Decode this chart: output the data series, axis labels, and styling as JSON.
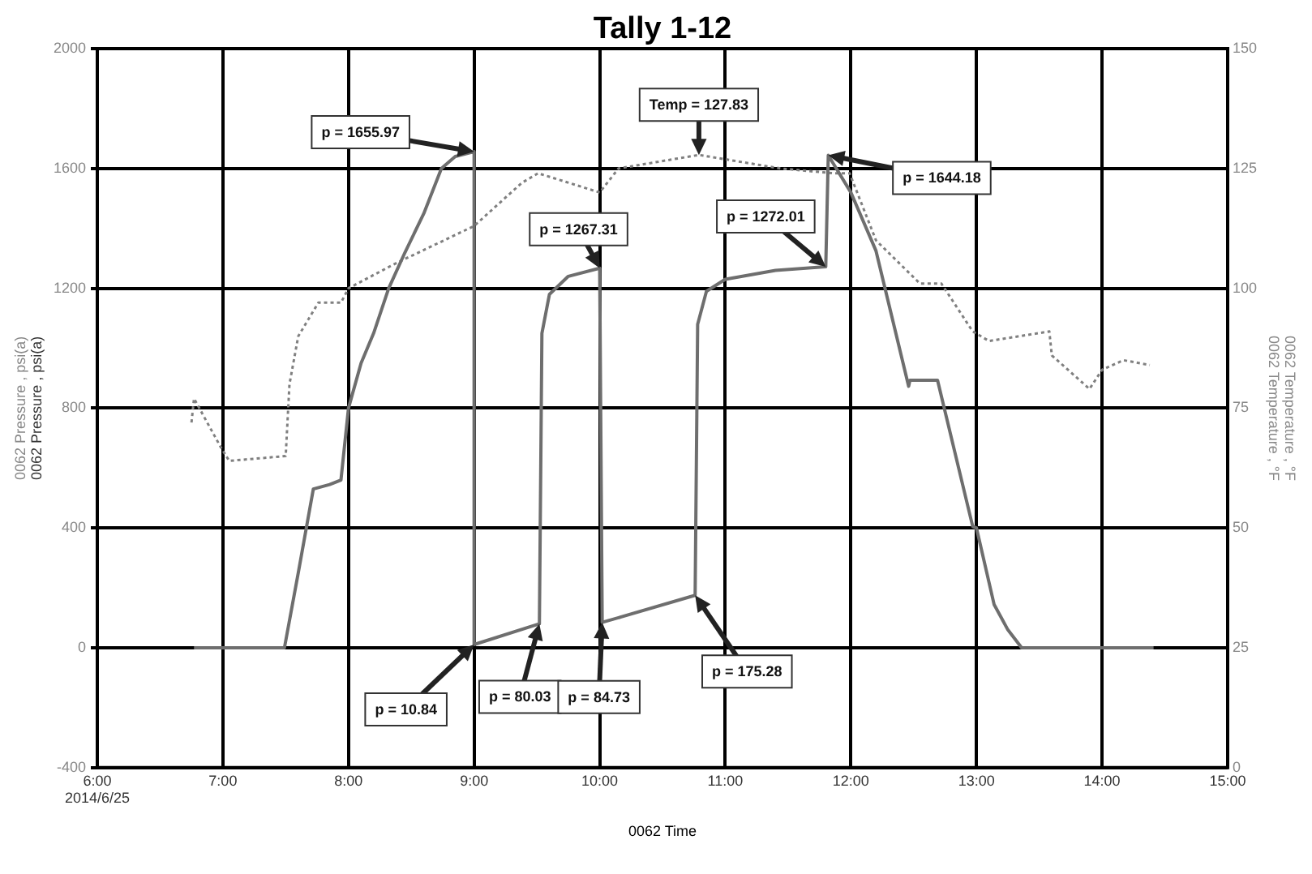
{
  "chart_data": {
    "type": "line",
    "title": "Tally 1-12",
    "xlabel": "0062 Time",
    "ylabel": "0062 Pressure , psi(a)",
    "y2label": "0062 Temperature , °F",
    "xlim": [
      6,
      15
    ],
    "xticks": [
      {
        "value": 6,
        "label": "6:00\n2014/6/25"
      },
      {
        "value": 7,
        "label": "7:00"
      },
      {
        "value": 8,
        "label": "8:00"
      },
      {
        "value": 9,
        "label": "9:00"
      },
      {
        "value": 10,
        "label": "10:00"
      },
      {
        "value": 11,
        "label": "11:00"
      },
      {
        "value": 12,
        "label": "12:00"
      },
      {
        "value": 13,
        "label": "13:00"
      },
      {
        "value": 14,
        "label": "14:00"
      },
      {
        "value": 15,
        "label": "15:00"
      }
    ],
    "ylim": [
      -400,
      2000
    ],
    "yticks": [
      -400,
      0,
      400,
      800,
      1200,
      1600,
      2000
    ],
    "y2lim": [
      0,
      150
    ],
    "y2ticks": [
      0,
      25,
      50,
      75,
      100,
      125,
      150
    ],
    "grid": true,
    "legend": false,
    "marker": "none",
    "series": [
      {
        "color": "#6e6e6e",
        "line_style": "solid",
        "x": [
          6.77,
          7.49,
          7.6,
          7.72,
          7.85,
          7.94,
          8.0,
          8.1,
          8.2,
          8.32,
          8.45,
          8.6,
          8.74,
          8.85,
          9.0,
          9.0,
          9.52,
          9.54,
          9.6,
          9.75,
          10.0,
          10.02,
          10.76,
          10.78,
          10.85,
          11.0,
          11.4,
          11.8,
          11.82,
          12.0,
          12.2,
          12.46,
          12.47,
          12.69,
          12.97,
          13.0,
          13.14,
          13.25,
          13.36,
          14.41
        ],
        "values": [
          0,
          0,
          250,
          530,
          545,
          560,
          800,
          950,
          1050,
          1200,
          1320,
          1450,
          1600,
          1640,
          1655.97,
          10.84,
          80.03,
          1050,
          1180,
          1240,
          1267.31,
          84.73,
          175.28,
          1080,
          1190,
          1230,
          1260,
          1272.01,
          1644.18,
          1520,
          1325,
          873,
          893,
          893,
          405,
          400,
          145,
          60,
          0,
          0
        ]
      },
      {
        "color": "#808080",
        "line_style": "dotted",
        "axis": "y2",
        "x": [
          6.75,
          6.77,
          6.98,
          7.05,
          7.5,
          7.53,
          7.6,
          7.76,
          7.94,
          8.0,
          8.36,
          9.0,
          9.38,
          9.51,
          10.0,
          10.15,
          10.79,
          11.44,
          11.86,
          11.99,
          12.2,
          12.55,
          12.72,
          12.97,
          13.1,
          13.58,
          13.6,
          13.9,
          14.0,
          14.17,
          14.38
        ],
        "values": [
          72,
          77,
          67,
          64,
          65,
          80,
          90,
          97,
          97,
          100,
          105,
          113,
          122,
          124,
          120,
          125,
          127.83,
          125,
          124,
          124,
          110,
          101,
          101,
          91,
          89,
          91,
          86,
          79,
          83,
          85,
          84
        ]
      }
    ],
    "annotations": [
      {
        "text": "p = 1655.97",
        "x": 9.0,
        "y": 1655.97
      },
      {
        "text": "Temp = 127.83",
        "x": 10.79,
        "y": 1645
      },
      {
        "text": "p = 1267.31",
        "x": 10.0,
        "y": 1267.31
      },
      {
        "text": "p = 1272.01",
        "x": 11.8,
        "y": 1272.01
      },
      {
        "text": "p = 1644.18",
        "x": 11.82,
        "y": 1644.18
      },
      {
        "text": "p = 10.84",
        "x": 9.0,
        "y": 10.84
      },
      {
        "text": "p = 80.03",
        "x": 9.52,
        "y": 80.03
      },
      {
        "text": "p = 84.73",
        "x": 10.02,
        "y": 84.73
      },
      {
        "text": "p = 175.28",
        "x": 10.76,
        "y": 175.28
      }
    ]
  }
}
